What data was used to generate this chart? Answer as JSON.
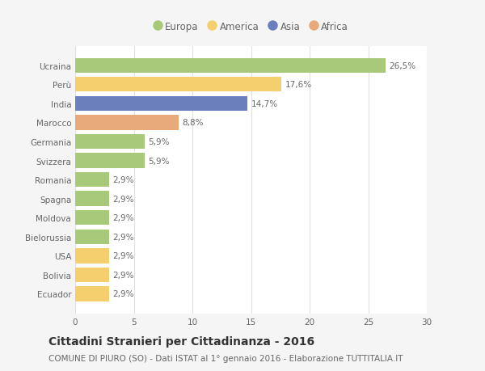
{
  "categories": [
    "Ucraina",
    "Perù",
    "India",
    "Marocco",
    "Germania",
    "Svizzera",
    "Romania",
    "Spagna",
    "Moldova",
    "Bielorussia",
    "USA",
    "Bolivia",
    "Ecuador"
  ],
  "values": [
    26.5,
    17.6,
    14.7,
    8.8,
    5.9,
    5.9,
    2.9,
    2.9,
    2.9,
    2.9,
    2.9,
    2.9,
    2.9
  ],
  "labels": [
    "26,5%",
    "17,6%",
    "14,7%",
    "8,8%",
    "5,9%",
    "5,9%",
    "2,9%",
    "2,9%",
    "2,9%",
    "2,9%",
    "2,9%",
    "2,9%",
    "2,9%"
  ],
  "colors": [
    "#a8c87a",
    "#f5ce6e",
    "#6b7fbd",
    "#e8aa7a",
    "#a8c87a",
    "#a8c87a",
    "#a8c87a",
    "#a8c87a",
    "#a8c87a",
    "#a8c87a",
    "#f5ce6e",
    "#f5ce6e",
    "#f5ce6e"
  ],
  "legend_labels": [
    "Europa",
    "America",
    "Asia",
    "Africa"
  ],
  "legend_colors": [
    "#a8c87a",
    "#f5ce6e",
    "#6b7fbd",
    "#e8aa7a"
  ],
  "title": "Cittadini Stranieri per Cittadinanza - 2016",
  "subtitle": "COMUNE DI PIURO (SO) - Dati ISTAT al 1° gennaio 2016 - Elaborazione TUTTITALIA.IT",
  "xlim": [
    0,
    30
  ],
  "xticks": [
    0,
    5,
    10,
    15,
    20,
    25,
    30
  ],
  "background_color": "#f5f5f5",
  "bar_background": "#ffffff",
  "grid_color": "#e0e0e0",
  "text_color": "#666666",
  "title_color": "#333333",
  "title_fontsize": 10,
  "subtitle_fontsize": 7.5,
  "label_fontsize": 7.5,
  "tick_fontsize": 7.5,
  "legend_fontsize": 8.5,
  "bar_height": 0.78
}
